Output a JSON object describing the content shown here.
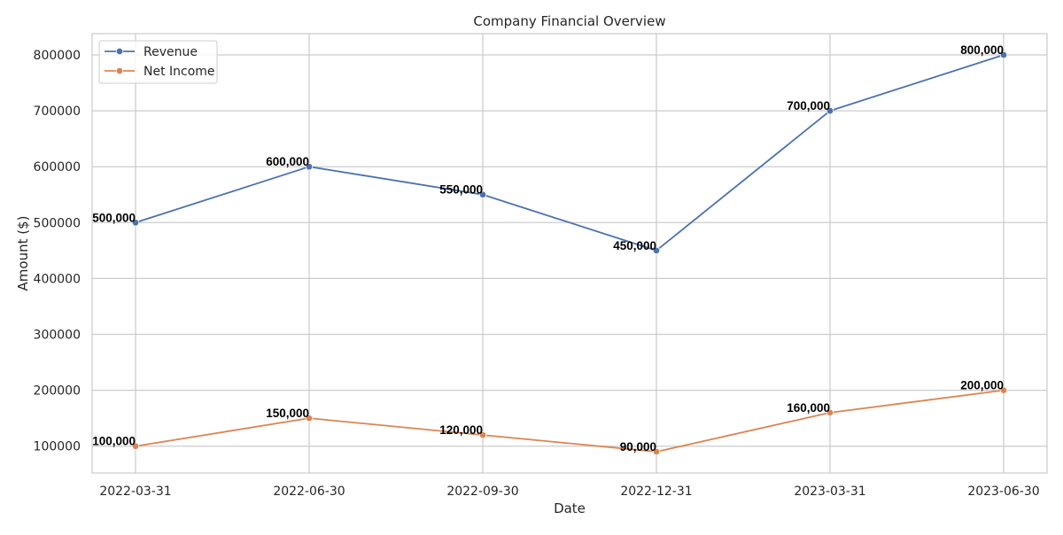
{
  "chart_data": {
    "type": "line",
    "title": "Company Financial Overview",
    "xlabel": "Date",
    "ylabel": "Amount ($)",
    "categories": [
      "2022-03-31",
      "2022-06-30",
      "2022-09-30",
      "2022-12-31",
      "2023-03-31",
      "2023-06-30"
    ],
    "y_ticks": [
      100000,
      200000,
      300000,
      400000,
      500000,
      600000,
      700000,
      800000
    ],
    "ylim": [
      52000,
      838000
    ],
    "grid": true,
    "legend_position": "top-left",
    "series": [
      {
        "name": "Revenue",
        "color": "#4c72b0",
        "values": [
          500000,
          600000,
          550000,
          450000,
          700000,
          800000
        ],
        "labels": [
          "500,000",
          "600,000",
          "550,000",
          "450,000",
          "700,000",
          "800,000"
        ]
      },
      {
        "name": "Net Income",
        "color": "#dd8452",
        "values": [
          100000,
          150000,
          120000,
          90000,
          160000,
          200000
        ],
        "labels": [
          "100,000",
          "150,000",
          "120,000",
          "90,000",
          "160,000",
          "200,000"
        ]
      }
    ]
  }
}
